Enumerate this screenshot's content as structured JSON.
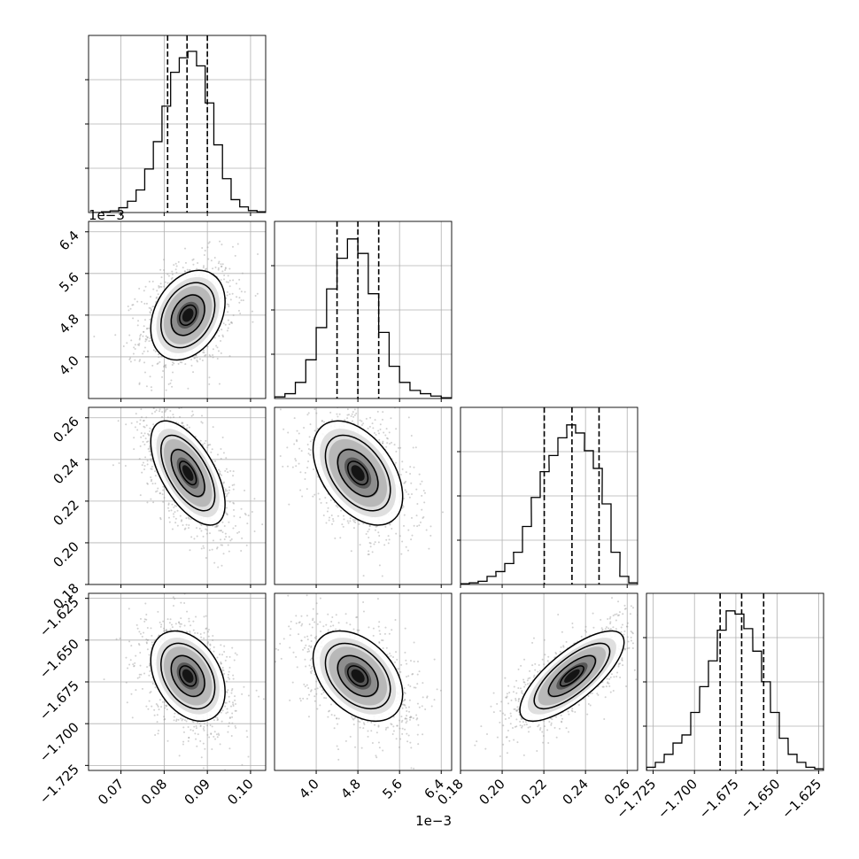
{
  "figure": {
    "type": "corner",
    "parameters": 4,
    "background": "#ffffff",
    "line_color": "#000000",
    "grid_color": "#b0b0b0"
  },
  "chart_data": [
    {
      "type": "histogram",
      "panel": "hist-p0",
      "xlim": [
        0.0625,
        0.1035
      ],
      "ylim": [
        0,
        1
      ],
      "x": [
        0.0645,
        0.0665,
        0.0685,
        0.0705,
        0.0725,
        0.0745,
        0.0765,
        0.0785,
        0.0805,
        0.0825,
        0.0845,
        0.0865,
        0.0885,
        0.0905,
        0.0925,
        0.0945,
        0.0965,
        0.0985,
        0.1005,
        0.1025
      ],
      "values": [
        0,
        0.005,
        0.01,
        0.03,
        0.07,
        0.14,
        0.27,
        0.44,
        0.66,
        0.87,
        0.96,
        1.0,
        0.91,
        0.68,
        0.42,
        0.21,
        0.08,
        0.035,
        0.012,
        0.005
      ],
      "quantile_lines": [
        0.0808,
        0.0853,
        0.09
      ],
      "yticks": [
        0.25,
        0.5,
        0.75
      ],
      "grid": true
    },
    {
      "type": "scatter-density",
      "panel": "p1-vs-p0",
      "x_center": 0.0855,
      "y_center": 0.0048,
      "x_sd": 0.0043,
      "y_sd": 0.00043,
      "correlation": 0.3,
      "xlim": [
        0.0625,
        0.1035
      ],
      "ylim": [
        0.0032,
        0.0066
      ],
      "yticks": [
        0.004,
        0.0048,
        0.0056,
        0.0064
      ],
      "ytick_labels": [
        "4.0",
        "4.8",
        "5.6",
        "6.4"
      ],
      "y_offset_label": "1e−3",
      "contours": 3,
      "grid": true
    },
    {
      "type": "histogram",
      "panel": "hist-p1",
      "xlim": [
        0.0032,
        0.0066
      ],
      "ylim": [
        0,
        1
      ],
      "x": [
        0.0033,
        0.0035,
        0.0037,
        0.0039,
        0.0041,
        0.0043,
        0.0045,
        0.0047,
        0.0049,
        0.0051,
        0.0053,
        0.0055,
        0.0057,
        0.0059,
        0.0061,
        0.0063,
        0.0065
      ],
      "values": [
        0.01,
        0.03,
        0.1,
        0.24,
        0.44,
        0.68,
        0.87,
        0.99,
        0.9,
        0.65,
        0.41,
        0.2,
        0.1,
        0.05,
        0.03,
        0.015,
        0.005
      ],
      "quantile_lines": [
        0.0044,
        0.0048,
        0.0052
      ],
      "yticks": [
        0.25,
        0.5,
        0.75
      ],
      "grid": true
    },
    {
      "type": "scatter-density",
      "panel": "p2-vs-p0",
      "x_center": 0.0855,
      "y_center": 0.2335,
      "x_sd": 0.0043,
      "y_sd": 0.0125,
      "correlation": -0.6,
      "xlim": [
        0.0625,
        0.1035
      ],
      "ylim": [
        0.18,
        0.265
      ],
      "yticks": [
        0.18,
        0.2,
        0.22,
        0.24,
        0.26
      ],
      "ytick_labels": [
        "0.18",
        "0.20",
        "0.22",
        "0.24",
        "0.26"
      ],
      "contours": 3,
      "grid": true
    },
    {
      "type": "scatter-density",
      "panel": "p2-vs-p1",
      "x_center": 0.0048,
      "y_center": 0.2335,
      "x_sd": 0.00043,
      "y_sd": 0.0125,
      "correlation": -0.45,
      "xlim": [
        0.0032,
        0.0066
      ],
      "ylim": [
        0.18,
        0.265
      ],
      "contours": 3,
      "grid": true
    },
    {
      "type": "histogram",
      "panel": "hist-p2",
      "xlim": [
        0.18,
        0.265
      ],
      "ylim": [
        0,
        1
      ],
      "x": [
        0.1821,
        0.1864,
        0.1906,
        0.1949,
        0.1991,
        0.2034,
        0.2076,
        0.2119,
        0.2161,
        0.2204,
        0.2246,
        0.2289,
        0.2331,
        0.2374,
        0.2416,
        0.2459,
        0.2501,
        0.2544,
        0.2586,
        0.2629
      ],
      "values": [
        0.005,
        0.01,
        0.02,
        0.05,
        0.08,
        0.13,
        0.2,
        0.36,
        0.54,
        0.7,
        0.8,
        0.91,
        0.99,
        0.94,
        0.83,
        0.72,
        0.5,
        0.2,
        0.05,
        0.01
      ],
      "quantile_lines": [
        0.2202,
        0.2335,
        0.2465
      ],
      "yticks": [
        0.25,
        0.5,
        0.75
      ],
      "grid": true
    },
    {
      "type": "scatter-density",
      "panel": "p3-vs-p0",
      "x_center": 0.0855,
      "y_center": -1.6715,
      "x_sd": 0.0043,
      "y_sd": 0.0135,
      "correlation": -0.35,
      "xlim": [
        0.0625,
        0.1035
      ],
      "ylim": [
        -1.728,
        -1.622
      ],
      "xticks": [
        0.07,
        0.08,
        0.09,
        0.1
      ],
      "xtick_labels": [
        "0.07",
        "0.08",
        "0.09",
        "0.10"
      ],
      "yticks": [
        -1.725,
        -1.7,
        -1.675,
        -1.65,
        -1.625
      ],
      "ytick_labels": [
        "−1.725",
        "−1.700",
        "−1.675",
        "−1.650",
        "−1.625"
      ],
      "contours": 3,
      "grid": true
    },
    {
      "type": "scatter-density",
      "panel": "p3-vs-p1",
      "x_center": 0.0048,
      "y_center": -1.6715,
      "x_sd": 0.00043,
      "y_sd": 0.0135,
      "correlation": -0.4,
      "xlim": [
        0.0032,
        0.0066
      ],
      "ylim": [
        -1.728,
        -1.622
      ],
      "xticks": [
        0.004,
        0.0048,
        0.0056,
        0.0064
      ],
      "xtick_labels": [
        "4.0",
        "4.8",
        "5.6",
        "6.4"
      ],
      "x_offset_label": "1e−3",
      "contours": 3,
      "grid": true
    },
    {
      "type": "scatter-density",
      "panel": "p3-vs-p2",
      "x_center": 0.2335,
      "y_center": -1.6715,
      "x_sd": 0.0125,
      "y_sd": 0.0135,
      "correlation": 0.75,
      "xlim": [
        0.18,
        0.265
      ],
      "ylim": [
        -1.728,
        -1.622
      ],
      "xticks": [
        0.18,
        0.2,
        0.22,
        0.24,
        0.26
      ],
      "xtick_labels": [
        "0.18",
        "0.20",
        "0.22",
        "0.24",
        "0.26"
      ],
      "contours": 3,
      "grid": true
    },
    {
      "type": "histogram",
      "panel": "hist-p3",
      "xlim": [
        -1.729,
        -1.622
      ],
      "ylim": [
        0,
        1
      ],
      "x": [
        -1.7263,
        -1.721,
        -1.7156,
        -1.7103,
        -1.7049,
        -1.6996,
        -1.6942,
        -1.6889,
        -1.6835,
        -1.6782,
        -1.6728,
        -1.6675,
        -1.6621,
        -1.6568,
        -1.6514,
        -1.6461,
        -1.6407,
        -1.6354,
        -1.63,
        -1.6247
      ],
      "values": [
        0.02,
        0.05,
        0.1,
        0.17,
        0.22,
        0.36,
        0.52,
        0.68,
        0.87,
        0.99,
        0.97,
        0.88,
        0.74,
        0.55,
        0.36,
        0.2,
        0.1,
        0.05,
        0.02,
        0.01
      ],
      "quantile_lines": [
        -1.6845,
        -1.6715,
        -1.6582
      ],
      "xticks": [
        -1.725,
        -1.7,
        -1.675,
        -1.65,
        -1.625
      ],
      "xtick_labels": [
        "−1.725",
        "−1.700",
        "−1.675",
        "−1.650",
        "−1.625"
      ],
      "yticks": [
        0.25,
        0.5,
        0.75
      ],
      "grid": true
    }
  ]
}
